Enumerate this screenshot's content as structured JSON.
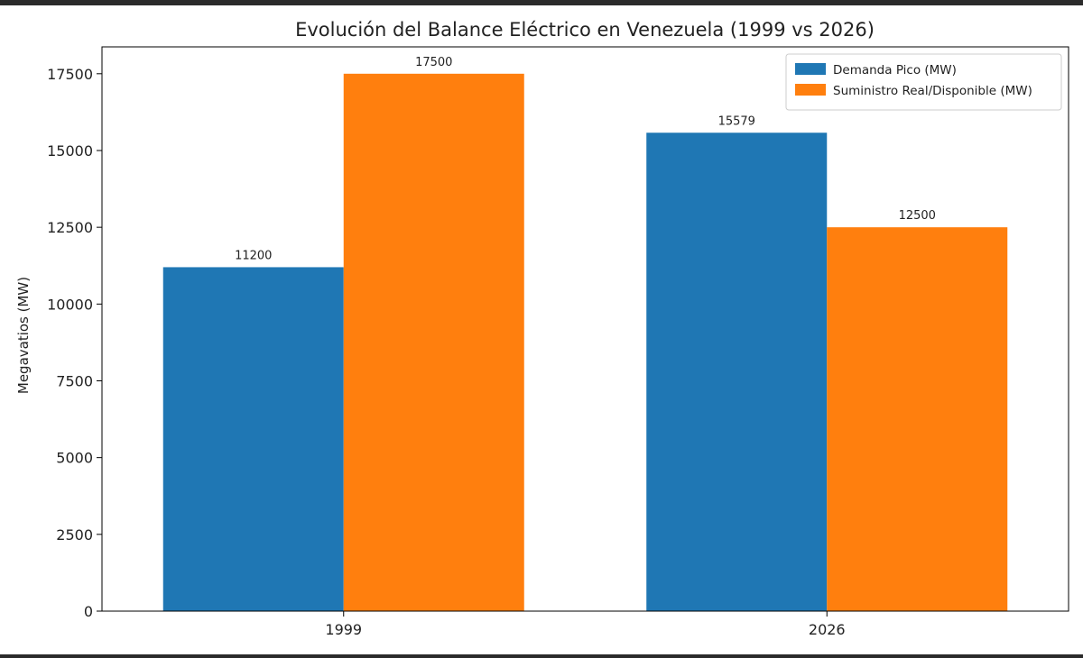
{
  "chart_data": {
    "type": "bar",
    "title": "Evolución del Balance Eléctrico en Venezuela (1999 vs 2026)",
    "xlabel": "",
    "ylabel": "Megavatios (MW)",
    "categories": [
      "1999",
      "2026"
    ],
    "series": [
      {
        "name": "Demanda Pico (MW)",
        "color": "#1f77b4",
        "values": [
          11200,
          15579
        ]
      },
      {
        "name": "Suministro Real/Disponible (MW)",
        "color": "#ff7f0e",
        "values": [
          17500,
          12500
        ]
      }
    ],
    "ylim": [
      0,
      18375
    ],
    "yticks": [
      0,
      2500,
      5000,
      7500,
      10000,
      12500,
      15000,
      17500
    ],
    "data_labels": true,
    "grid": false,
    "legend_position": "top-right"
  }
}
